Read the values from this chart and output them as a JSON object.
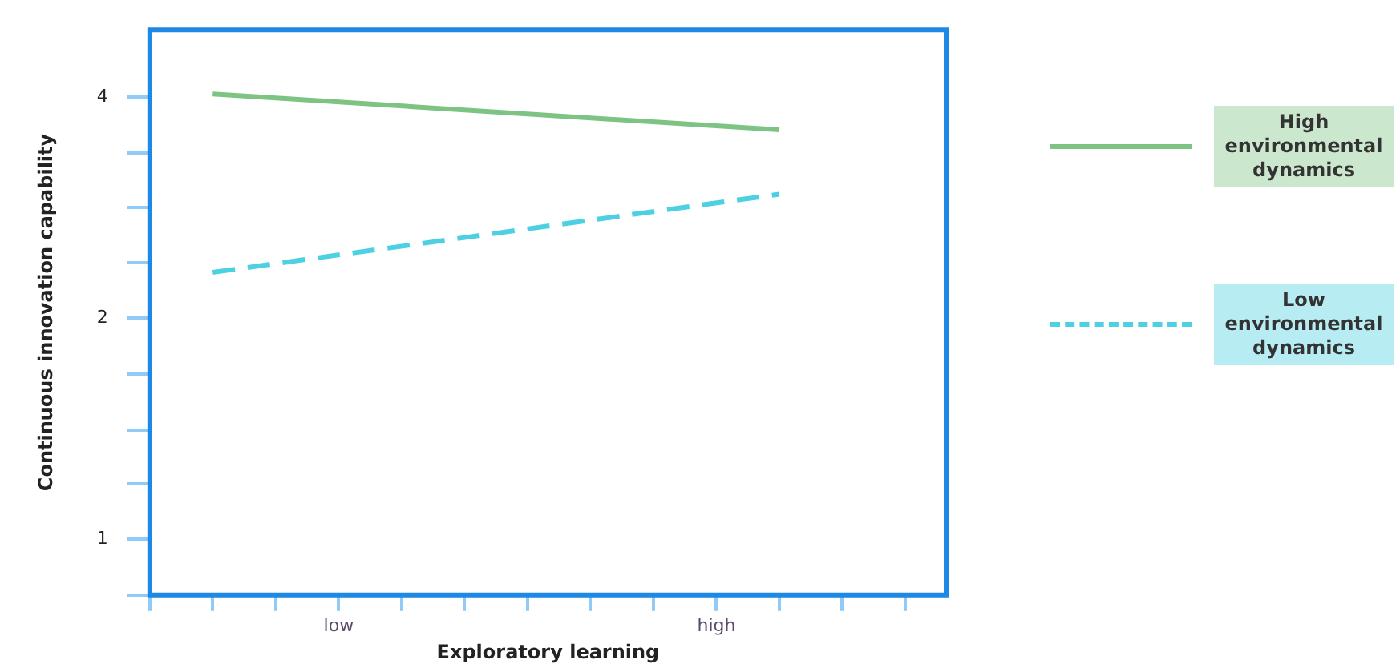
{
  "chart_data": {
    "type": "line",
    "xlabel": "Exploratory learning",
    "ylabel": "Continuous innovation capability",
    "log": "y",
    "grid": false,
    "legend": "right",
    "marker": "none",
    "categories": [
      null,
      null,
      null,
      "low",
      null,
      null,
      null,
      null,
      null,
      "high",
      null,
      null,
      null
    ],
    "ylim": [
      0.84,
      4.94
    ],
    "yticks": [
      {
        "value": 0.84,
        "label": null
      },
      1,
      {
        "value": 1.19,
        "label": null
      },
      {
        "value": 1.41,
        "label": null
      },
      {
        "value": 1.68,
        "label": null
      },
      2,
      {
        "value": 2.38,
        "label": null
      },
      {
        "value": 2.83,
        "label": null
      },
      {
        "value": 3.36,
        "label": null
      },
      4
    ],
    "series": [
      {
        "name": "High environmental dynamics",
        "color": "#7dc383",
        "line_style": "solid",
        "values": [
          null,
          4.04,
          null,
          null,
          null,
          null,
          null,
          null,
          null,
          null,
          3.61,
          null,
          null
        ]
      },
      {
        "name": "Low environmental dynamics",
        "color": "#4dd0e1",
        "line_style": "dashed",
        "values": [
          null,
          2.31,
          null,
          null,
          null,
          null,
          null,
          null,
          null,
          null,
          2.95,
          null,
          null
        ]
      }
    ]
  }
}
